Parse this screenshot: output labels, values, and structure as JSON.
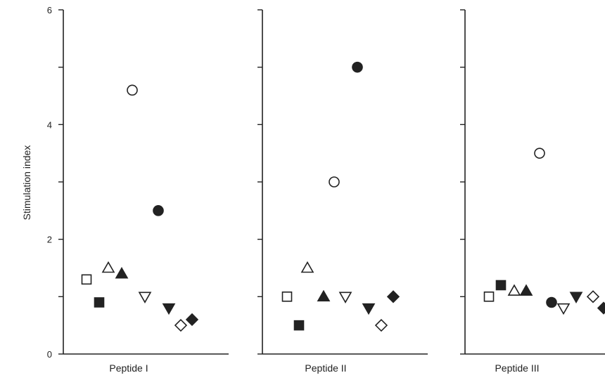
{
  "chart_data": {
    "type": "scatter",
    "ylabel": "Stimulation index",
    "ylim": [
      0,
      6
    ],
    "yticks": [
      {
        "value": 0,
        "label": "0"
      },
      {
        "value": 2,
        "label": "2"
      },
      {
        "value": 4,
        "label": "4"
      },
      {
        "value": 6,
        "label": "6"
      }
    ],
    "grid": false,
    "panels": [
      {
        "label": "Peptide I",
        "points": [
          {
            "symbol": "open-square",
            "y": 1.3
          },
          {
            "symbol": "filled-square",
            "y": 0.9
          },
          {
            "symbol": "open-triangle-up",
            "y": 1.5
          },
          {
            "symbol": "filled-triangle-up",
            "y": 1.4
          },
          {
            "symbol": "open-circle",
            "y": 4.6
          },
          {
            "symbol": "filled-circle",
            "y": 2.5
          },
          {
            "symbol": "open-triangle-down",
            "y": 1.0
          },
          {
            "symbol": "filled-triangle-down",
            "y": 0.8
          },
          {
            "symbol": "open-diamond",
            "y": 0.5
          },
          {
            "symbol": "filled-diamond",
            "y": 0.6
          }
        ]
      },
      {
        "label": "Peptide II",
        "points": [
          {
            "symbol": "open-square",
            "y": 1.0
          },
          {
            "symbol": "filled-square",
            "y": 0.5
          },
          {
            "symbol": "open-triangle-up",
            "y": 1.5
          },
          {
            "symbol": "filled-triangle-up",
            "y": 1.0
          },
          {
            "symbol": "open-circle",
            "y": 3.0
          },
          {
            "symbol": "filled-circle",
            "y": 5.0
          },
          {
            "symbol": "open-triangle-down",
            "y": 1.0
          },
          {
            "symbol": "filled-triangle-down",
            "y": 0.8
          },
          {
            "symbol": "open-diamond",
            "y": 0.5
          },
          {
            "symbol": "filled-diamond",
            "y": 1.0
          }
        ]
      },
      {
        "label": "Peptide III",
        "points": [
          {
            "symbol": "open-square",
            "y": 1.0
          },
          {
            "symbol": "filled-square",
            "y": 1.2
          },
          {
            "symbol": "open-triangle-up",
            "y": 1.1
          },
          {
            "symbol": "filled-triangle-up",
            "y": 1.1
          },
          {
            "symbol": "open-circle",
            "y": 3.5
          },
          {
            "symbol": "filled-circle",
            "y": 0.9
          },
          {
            "symbol": "open-triangle-down",
            "y": 0.8
          },
          {
            "symbol": "filled-triangle-down",
            "y": 1.0
          },
          {
            "symbol": "open-diamond",
            "y": 1.0
          },
          {
            "symbol": "filled-diamond",
            "y": 0.8
          }
        ]
      }
    ]
  }
}
